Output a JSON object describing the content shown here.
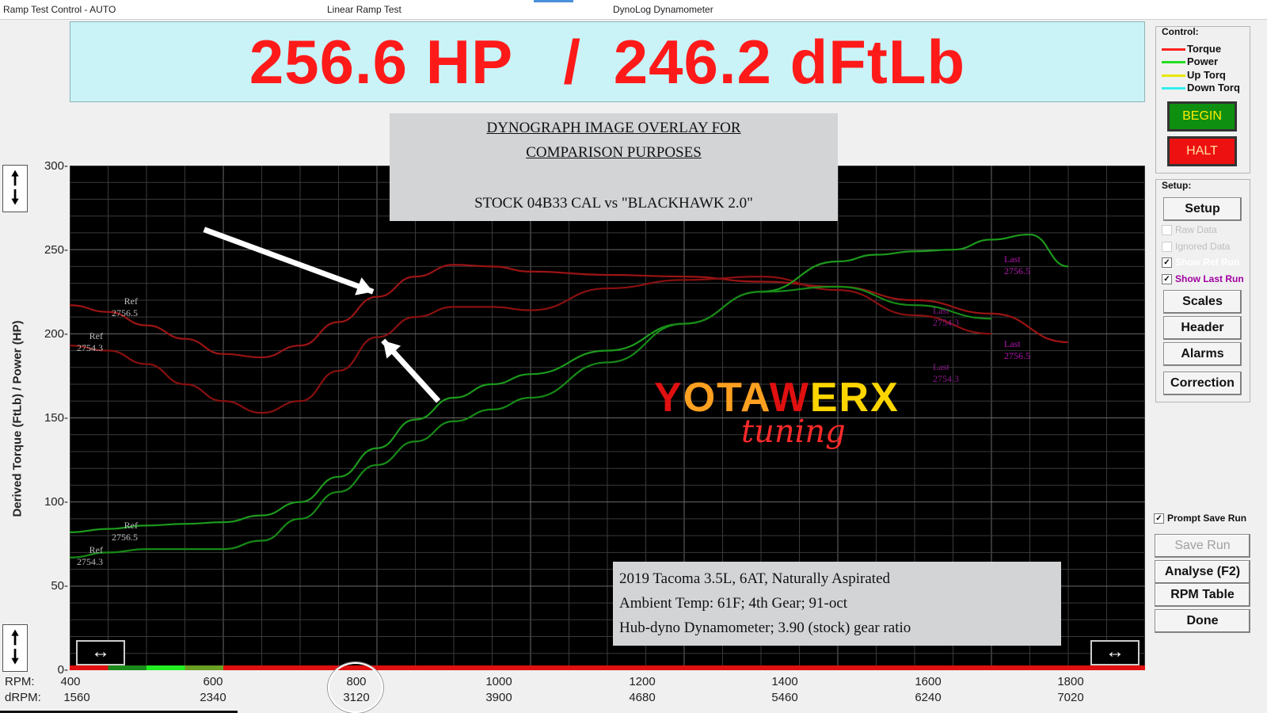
{
  "titlebar": {
    "left": "Ramp Test Control - AUTO",
    "mid": "Linear Ramp Test",
    "right": "DynoLog Dynamometer"
  },
  "display": {
    "hp": "256.6 HP",
    "sep": "/",
    "torque": "246.2 dFtLb"
  },
  "yaxis": {
    "title": "Derived Torque (FtLb) / Power (HP)",
    "ticks": [
      "300-",
      "250-",
      "200-",
      "150-",
      "100-",
      "50-",
      "0-"
    ]
  },
  "xaxis": {
    "rpm_label": "RPM:",
    "drpm_label": "dRPM:",
    "rpm": [
      "400",
      "600",
      "800",
      "1000",
      "1200",
      "1400",
      "1600",
      "1800"
    ],
    "drpm": [
      "1560",
      "2340",
      "3120",
      "3900",
      "4680",
      "5460",
      "6240",
      "7020"
    ]
  },
  "overlay_title": {
    "line1": "DYNOGRAPH IMAGE OVERLAY FOR",
    "line2": "COMPARISON PURPOSES",
    "line3": "STOCK 04B33 CAL vs \"BLACKHAWK 2.0\""
  },
  "info": {
    "line1": "2019 Tacoma 3.5L, 6AT, Naturally Aspirated",
    "line2": "Ambient Temp: 61F; 4th Gear; 91-oct",
    "line3": "Hub-dyno Dynamometer; 3.90 (stock) gear ratio"
  },
  "logo": {
    "word_y": "Y",
    "word_ota": "OTA",
    "word_w": "W",
    "word_erx": "ERX",
    "script": "tuning"
  },
  "curve_labels": {
    "ref": "Ref",
    "last": "Last",
    "run_a": "2756.5",
    "run_b": "2754.3"
  },
  "control": {
    "title": "Control:",
    "legend": [
      {
        "label": "Torque",
        "color": "#ff2020"
      },
      {
        "label": "Power",
        "color": "#22dd22"
      },
      {
        "label": "Up Torq",
        "color": "#e8e800"
      },
      {
        "label": "Down Torq",
        "color": "#33eeee"
      }
    ],
    "begin": "BEGIN",
    "halt": "HALT"
  },
  "setup": {
    "title": "Setup:",
    "setup_btn": "Setup",
    "raw_data": "Raw Data",
    "ignored_data": "Ignored Data",
    "show_ref": "Show Ref Run",
    "show_last": "Show Last Run",
    "scales": "Scales",
    "header": "Header",
    "alarms": "Alarms",
    "correction": "Correction"
  },
  "bottom_panel": {
    "prompt_save": "Prompt Save Run",
    "save_run": "Save Run",
    "analyse": "Analyse (F2)",
    "rpm_table": "RPM Table",
    "done": "Done"
  },
  "colors": {
    "torque": "#b01818",
    "power": "#1fa41f",
    "background": "#000000",
    "display_bg": "#c9f3f7"
  },
  "chart_data": {
    "type": "line",
    "x_unit": "RPM",
    "xlim": [
      400,
      1800
    ],
    "ylim": [
      0,
      300
    ],
    "series": [
      {
        "name": "Ref Torque 2756.5",
        "color": "#9b1414",
        "x": [
          400,
          450,
          500,
          550,
          600,
          650,
          700,
          750,
          800,
          850,
          900,
          950,
          1000,
          1100,
          1200,
          1300,
          1400,
          1500,
          1600,
          1700
        ],
        "y": [
          217,
          213,
          205,
          197,
          188,
          186,
          193,
          207,
          222,
          234,
          241,
          240,
          237,
          235,
          234,
          231,
          228,
          220,
          212,
          195
        ]
      },
      {
        "name": "Ref Torque 2754.3",
        "color": "#8a1010",
        "x": [
          400,
          450,
          500,
          550,
          600,
          650,
          700,
          750,
          800,
          850,
          900,
          950,
          1000,
          1100,
          1200,
          1300,
          1400,
          1500,
          1600
        ],
        "y": [
          193,
          190,
          182,
          170,
          160,
          153,
          160,
          178,
          198,
          210,
          216,
          216,
          214,
          227,
          232,
          234,
          226,
          211,
          200
        ]
      },
      {
        "name": "Ref Power 2756.5",
        "color": "#1c9a1c",
        "x": [
          400,
          450,
          500,
          550,
          600,
          650,
          700,
          750,
          800,
          850,
          900,
          950,
          1000,
          1100,
          1200,
          1300,
          1400,
          1450,
          1500,
          1550,
          1600,
          1650,
          1700
        ],
        "y": [
          82,
          84,
          86,
          87,
          88,
          92,
          100,
          115,
          132,
          149,
          162,
          170,
          176,
          190,
          206,
          225,
          243,
          247,
          249,
          250,
          256,
          259,
          240
        ]
      },
      {
        "name": "Ref Power 2754.3",
        "color": "#178a17",
        "x": [
          400,
          450,
          500,
          550,
          600,
          650,
          700,
          750,
          800,
          850,
          900,
          950,
          1000,
          1100,
          1200,
          1300,
          1400,
          1500,
          1600
        ],
        "y": [
          67,
          70,
          72,
          72,
          72,
          77,
          90,
          106,
          122,
          136,
          148,
          155,
          162,
          183,
          206,
          225,
          228,
          217,
          209
        ]
      }
    ]
  }
}
